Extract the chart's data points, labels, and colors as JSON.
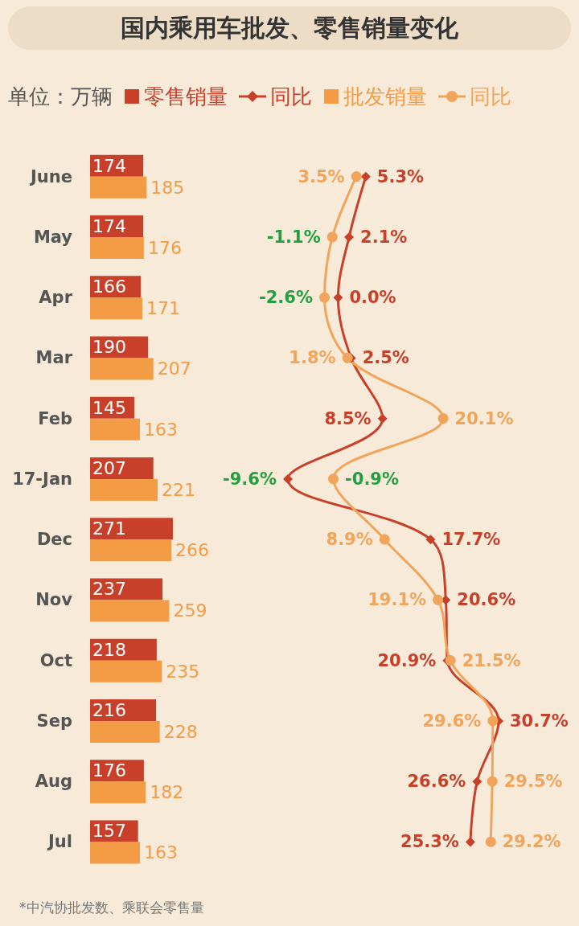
{
  "chart_data": [
    {
      "type": "bar",
      "orientation": "horizontal",
      "title": "国内乘用车批发、零售销量变化",
      "annotations": [
        "单位：万辆",
        "*中汽协批发数、乘联会零售量"
      ],
      "categories": [
        "June",
        "May",
        "Apr",
        "Mar",
        "Feb",
        "17-Jan",
        "Dec",
        "Nov",
        "Oct",
        "Sep",
        "Aug",
        "Jul"
      ],
      "series": [
        {
          "name": "零售销量",
          "color": "#c8402a",
          "values": [
            174,
            174,
            166,
            190,
            145,
            207,
            271,
            237,
            218,
            216,
            176,
            157
          ]
        },
        {
          "name": "批发销量",
          "color": "#f39b45",
          "values": [
            185,
            176,
            171,
            207,
            163,
            221,
            266,
            259,
            235,
            228,
            182,
            163
          ]
        }
      ],
      "tick_labels": "y",
      "data_labels": true,
      "legend": "top"
    },
    {
      "type": "line",
      "orientation": "horizontal",
      "categories": [
        null,
        null,
        null,
        null,
        null,
        null,
        null,
        null,
        null,
        null,
        null,
        null
      ],
      "series": [
        {
          "name": "同比",
          "marker": "diamond",
          "color": "#c8402a",
          "values": [
            5.3,
            2.1,
            0.0,
            2.5,
            8.5,
            -9.6,
            17.7,
            20.6,
            20.9,
            30.7,
            26.6,
            25.3
          ],
          "value_labels": [
            "5.3%",
            "2.1%",
            "0.0%",
            "2.5%",
            "8.5%",
            "-9.6%",
            "17.7%",
            "20.6%",
            "20.9%",
            "30.7%",
            "26.6%",
            "25.3%"
          ]
        },
        {
          "name": "同比",
          "marker": "circle",
          "color": "#f0a55a",
          "values": [
            3.5,
            -1.1,
            -2.6,
            1.8,
            20.1,
            -0.9,
            8.9,
            19.1,
            21.5,
            29.6,
            29.5,
            29.2
          ],
          "value_labels": [
            "3.5%",
            "-1.1%",
            "-2.6%",
            "1.8%",
            "20.1%",
            "-0.9%",
            "8.9%",
            "19.1%",
            "21.5%",
            "29.6%",
            "29.5%",
            "29.2%"
          ]
        }
      ],
      "tick_labels": false,
      "legend": "top"
    }
  ]
}
